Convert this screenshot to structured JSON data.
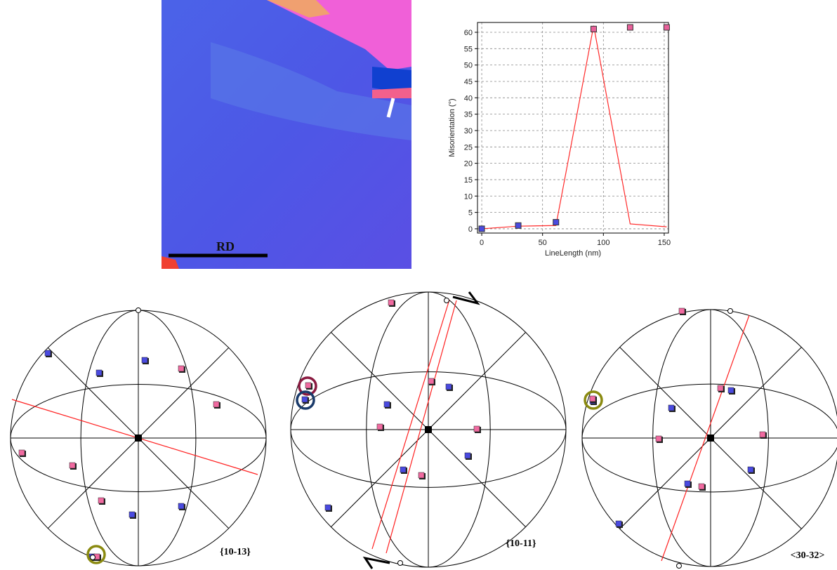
{
  "map": {
    "scale_label": "RD"
  },
  "chart_data": {
    "type": "line",
    "x": [
      0,
      30,
      61,
      92,
      122,
      152
    ],
    "series": [
      {
        "color": "#ff2a2a",
        "style": "line",
        "values": [
          0,
          0.8,
          1,
          62,
          1.5,
          0.6
        ]
      },
      {
        "color": "#e8609a",
        "style": "markers",
        "values": [
          0,
          1,
          2,
          61,
          61.5,
          61.5
        ],
        "point_colors": [
          "#4a4ae0",
          "#4a4ae0",
          "#4a4ae0",
          "#e8609a",
          "#e8609a",
          "#e8609a"
        ]
      }
    ],
    "xlabel": "LineLength (nm)",
    "ylabel": "Misorientation (°)",
    "xlim": [
      -3.5,
      153.5
    ],
    "ylim": [
      -1.3,
      63
    ],
    "xticks": [
      0,
      50,
      100,
      150
    ],
    "yticks": [
      0,
      5,
      10,
      15,
      20,
      25,
      30,
      35,
      40,
      45,
      50,
      55,
      60
    ],
    "grid": true
  },
  "pole_figures": [
    {
      "label": "{10-13}"
    },
    {
      "label": "{10-11}"
    },
    {
      "label": "<30-32>"
    }
  ]
}
